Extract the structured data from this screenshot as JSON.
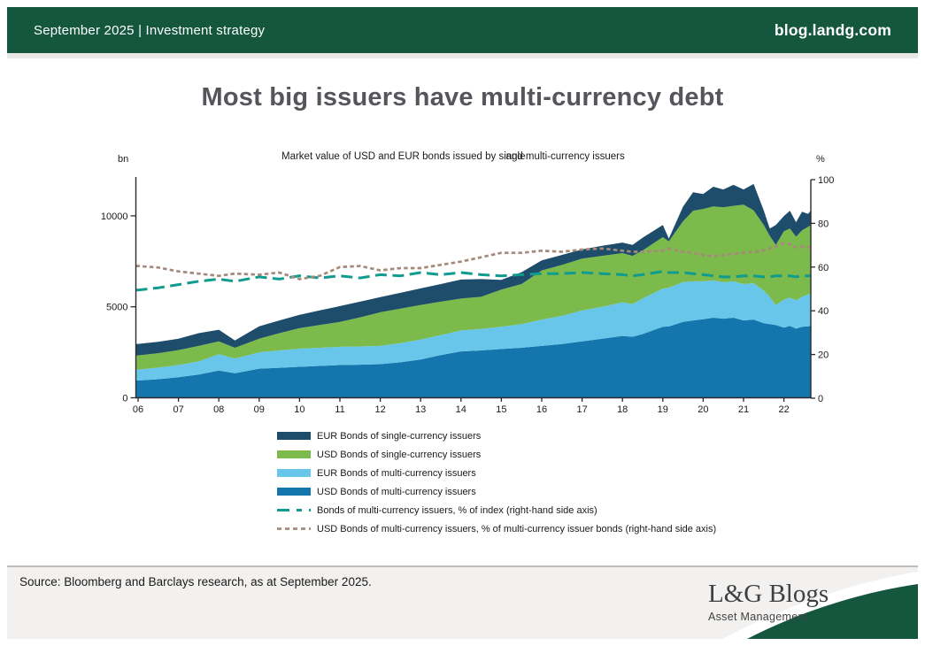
{
  "header": {
    "left": "September 2025 | Investment strategy",
    "right": "blog.landg.com"
  },
  "page_title": "Most big issuers have multi-currency debt",
  "chart": {
    "subtitle_part1": "Market value of USD and EUR bonds issued by single",
    "subtitle_part2": "and multi-currency issuers",
    "left_axis_unit": "bn",
    "right_axis_unit": "%"
  },
  "chart_data": {
    "type": "area",
    "title": "Market value of USD and EUR bonds issued by single and multi-currency issuers",
    "x_label_years": [
      "06",
      "07",
      "08",
      "09",
      "10",
      "11",
      "12",
      "13",
      "14",
      "15",
      "16",
      "17",
      "18",
      "19",
      "20",
      "21",
      "22"
    ],
    "y_left": {
      "unit": "bn",
      "ticks": [
        0,
        5000,
        10000
      ],
      "range": [
        0,
        12200
      ]
    },
    "y_right": {
      "unit": "%",
      "ticks": [
        0,
        20,
        40,
        60,
        80,
        100
      ],
      "range": [
        0,
        100
      ]
    },
    "x": [
      2006,
      2006.5,
      2007,
      2007.5,
      2008,
      2008.4,
      2009,
      2009.5,
      2010,
      2010.5,
      2011,
      2011.5,
      2012,
      2012.5,
      2013,
      2013.5,
      2014,
      2014.5,
      2015,
      2015.5,
      2016,
      2016.5,
      2017,
      2017.5,
      2018,
      2018.25,
      2018.5,
      2019,
      2019.15,
      2019.5,
      2019.75,
      2020,
      2020.25,
      2020.5,
      2020.75,
      2021,
      2021.25,
      2021.5,
      2021.65,
      2021.8,
      2022,
      2022.15,
      2022.3,
      2022.45,
      2022.6,
      2022.7
    ],
    "series": [
      {
        "name": "USD Bonds of multi-currency issuers",
        "kind": "area",
        "axis": "left",
        "color": "#1476AD",
        "values": [
          950,
          1020,
          1130,
          1280,
          1500,
          1350,
          1600,
          1650,
          1700,
          1750,
          1800,
          1820,
          1850,
          1950,
          2100,
          2350,
          2550,
          2600,
          2680,
          2750,
          2850,
          2950,
          3100,
          3250,
          3400,
          3350,
          3500,
          3900,
          3920,
          4170,
          4250,
          4320,
          4400,
          4350,
          4400,
          4250,
          4300,
          4100,
          4050,
          4000,
          3850,
          3950,
          3800,
          3900,
          3930,
          3950
        ]
      },
      {
        "name": "EUR Bonds of multi-currency issuers",
        "kind": "area",
        "axis": "left",
        "color": "#69C6EB",
        "values": [
          600,
          640,
          670,
          720,
          900,
          800,
          900,
          950,
          1000,
          1000,
          1000,
          1000,
          1000,
          1050,
          1100,
          1100,
          1150,
          1180,
          1220,
          1300,
          1450,
          1550,
          1700,
          1750,
          1850,
          1800,
          1950,
          2100,
          2130,
          2180,
          2150,
          2080,
          2050,
          2000,
          2000,
          2000,
          2000,
          1800,
          1500,
          1100,
          1550,
          1550,
          1550,
          1650,
          1750,
          1800
        ]
      },
      {
        "name": "USD Bonds of single-currency issuers",
        "kind": "area",
        "axis": "left",
        "color": "#7CBA4B",
        "values": [
          780,
          790,
          820,
          850,
          700,
          600,
          750,
          950,
          1130,
          1250,
          1370,
          1600,
          1850,
          1900,
          1900,
          1830,
          1750,
          1770,
          2050,
          2200,
          2700,
          2800,
          2850,
          2800,
          2700,
          2650,
          2650,
          2830,
          2550,
          3350,
          3880,
          3980,
          4070,
          4120,
          4150,
          4370,
          4000,
          3600,
          3350,
          3300,
          3760,
          3800,
          3500,
          3650,
          3720,
          3750
        ]
      },
      {
        "name": "EUR Bonds of single-currency issuers",
        "kind": "area",
        "axis": "left",
        "color": "#1E4D6B",
        "values": [
          630,
          630,
          630,
          700,
          640,
          400,
          680,
          700,
          730,
          800,
          870,
          860,
          830,
          870,
          910,
          970,
          1050,
          970,
          530,
          650,
          550,
          550,
          500,
          550,
          580,
          600,
          700,
          670,
          150,
          800,
          1020,
          820,
          1080,
          980,
          1150,
          830,
          1450,
          800,
          400,
          1100,
          830,
          980,
          800,
          1030,
          700,
          800
        ]
      },
      {
        "name": "Bonds of multi-currency issuers, % of index (right-hand side axis)",
        "kind": "line",
        "dash": "long",
        "axis": "right",
        "color": "#0F9B8E",
        "values": [
          49.5,
          50.5,
          52,
          53.5,
          54.5,
          53.5,
          55.5,
          54.5,
          56,
          55,
          56,
          55,
          56.5,
          56,
          57.5,
          56.5,
          57.5,
          56.5,
          56,
          56.5,
          57,
          57,
          57.5,
          57,
          56.5,
          56,
          56.5,
          58,
          57.5,
          57.5,
          57,
          56.5,
          56,
          55.5,
          55.5,
          56,
          56,
          55.5,
          55.5,
          56,
          56,
          56,
          55.5,
          56,
          56,
          56
        ]
      },
      {
        "name": "USD Bonds of multi-currency issuers, % of multi-currency issuer bonds (right-hand side axis)",
        "kind": "line",
        "dash": "short",
        "axis": "right",
        "color": "#A48A7B",
        "values": [
          60.5,
          59.8,
          58,
          57,
          56,
          57,
          56.5,
          57.5,
          54.5,
          56,
          60,
          60.5,
          58.5,
          59.5,
          59.5,
          61,
          62.5,
          64.5,
          66.5,
          66.5,
          67.5,
          67,
          68,
          68.5,
          67.5,
          67,
          67,
          67.5,
          68.5,
          67,
          66.5,
          65.5,
          65,
          65.5,
          66,
          66.5,
          67,
          67.5,
          68.5,
          69.5,
          71,
          70.5,
          69,
          69.5,
          69,
          69.5
        ]
      }
    ],
    "legend_position": "bottom",
    "grid": false
  },
  "legend": [
    {
      "label": "EUR Bonds of single-currency issuers",
      "swatch": "area",
      "color": "#1E4D6B"
    },
    {
      "label": "USD Bonds of single-currency issuers",
      "swatch": "area",
      "color": "#7CBA4B"
    },
    {
      "label": "EUR Bonds of multi-currency issuers",
      "swatch": "area",
      "color": "#69C6EB"
    },
    {
      "label": "USD Bonds of multi-currency issuers",
      "swatch": "area",
      "color": "#1476AD"
    },
    {
      "label": "Bonds of multi-currency issuers, % of index (right-hand side axis)",
      "swatch": "dash-long",
      "color": "#0F9B8E"
    },
    {
      "label": "USD Bonds of multi-currency issuers, % of multi-currency issuer bonds (right-hand side axis)",
      "swatch": "dash-short",
      "color": "#A48A7B"
    }
  ],
  "footer": {
    "source": "Source: Bloomberg and Barclays research, as at September 2025.",
    "logo_title": "L&G Blogs",
    "logo_subtitle": "Asset Management"
  },
  "colors": {
    "brand_green": "#14573E",
    "footer_bg": "#F2F1EF",
    "title_gray": "#54565B",
    "axis": "#2B2B2B",
    "text": "#1A1A1A"
  }
}
